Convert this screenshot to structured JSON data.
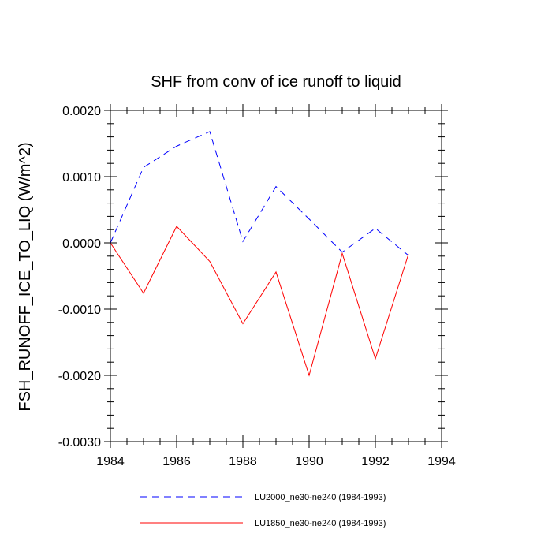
{
  "chart_data": {
    "type": "line",
    "title": "SHF from conv of ice runoff to liquid",
    "xlabel": "",
    "ylabel": "FSH_RUNOFF_ICE_TO_LIQ  (W/m^2)",
    "xlim": [
      1984,
      1994
    ],
    "ylim": [
      -0.003,
      0.002
    ],
    "x_ticks": [
      1984,
      1986,
      1988,
      1990,
      1992,
      1994
    ],
    "x_tick_labels": [
      "1984",
      "1986",
      "1988",
      "1990",
      "1992",
      "1994"
    ],
    "y_ticks": [
      -0.003,
      -0.002,
      -0.001,
      0.0,
      0.001,
      0.002
    ],
    "y_tick_labels": [
      "-0.0030",
      "-0.0020",
      "-0.0010",
      "0.0000",
      "0.0010",
      "0.0020"
    ],
    "x": [
      1984,
      1985,
      1986,
      1987,
      1988,
      1989,
      1990,
      1991,
      1992,
      1993
    ],
    "series": [
      {
        "name": "LU2000_ne30-ne240 (1984-1993)",
        "color": "#0000ff",
        "style": "dashed",
        "values": [
          0.0,
          0.00114,
          0.00146,
          0.00168,
          2e-05,
          0.00085,
          0.00036,
          -0.00014,
          0.00022,
          -0.00019
        ]
      },
      {
        "name": "LU1850_ne30-ne240 (1984-1993)",
        "color": "#ff0000",
        "style": "solid",
        "values": [
          0.0,
          -0.00076,
          0.00025,
          -0.00028,
          -0.00122,
          -0.00044,
          -0.002,
          -0.00016,
          -0.00175,
          -0.00017
        ]
      }
    ],
    "legend_position": "bottom"
  }
}
